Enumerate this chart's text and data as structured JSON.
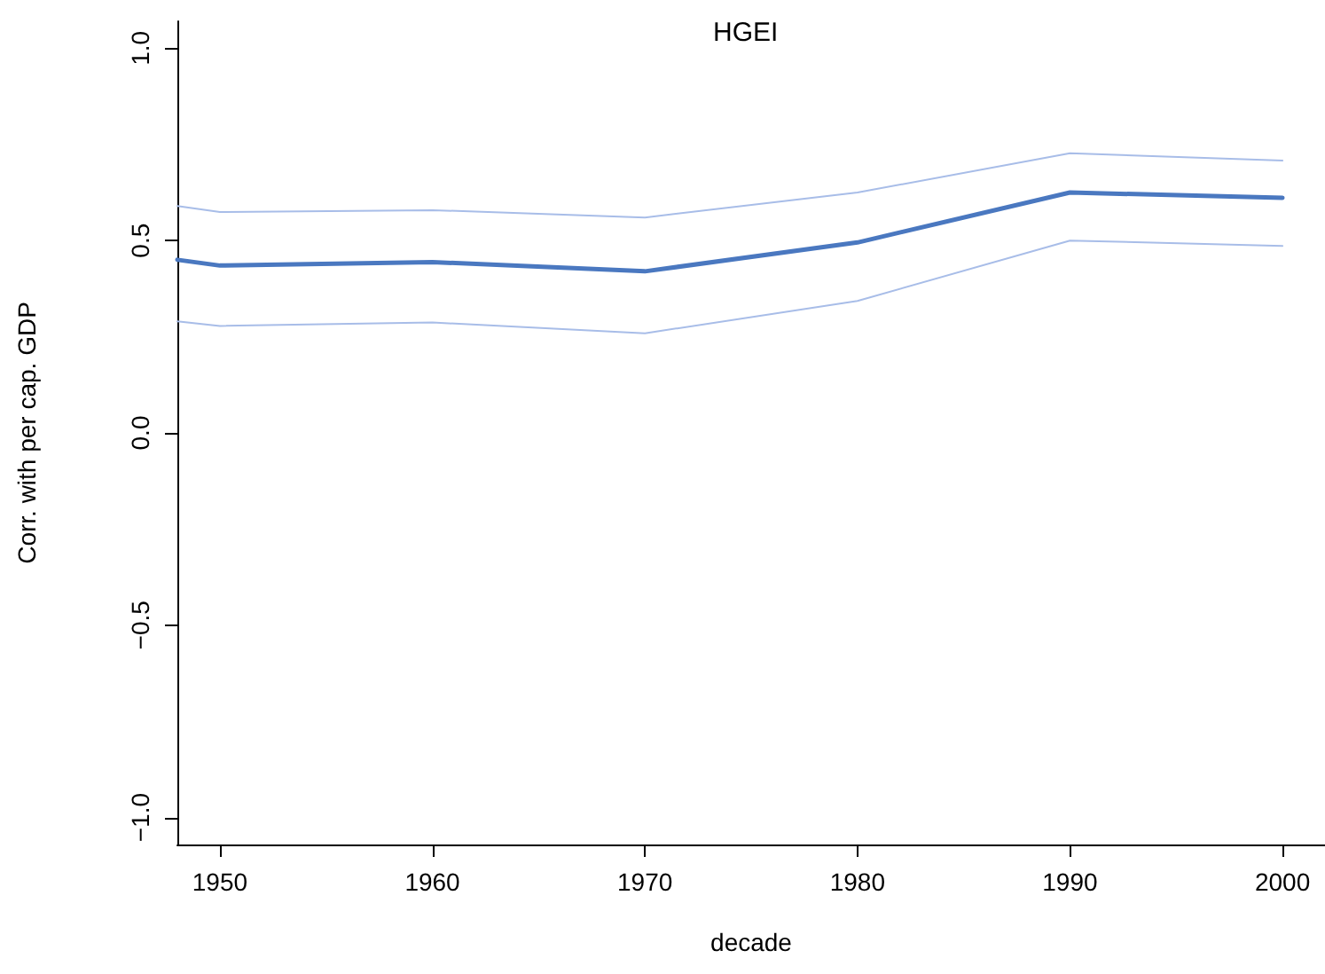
{
  "chart_data": {
    "type": "line",
    "title": "HGEI",
    "xlabel": "decade",
    "ylabel": "Corr. with per cap. GDP",
    "x": [
      1948,
      1950,
      1960,
      1970,
      1980,
      1990,
      2000
    ],
    "series": [
      {
        "color": "#4a78c0",
        "values": [
          0.45,
          0.435,
          0.444,
          0.42,
          0.495,
          0.625,
          0.611
        ]
      },
      {
        "color": "#a8bde8",
        "values": [
          0.59,
          0.574,
          0.579,
          0.56,
          0.625,
          0.727,
          0.708
        ]
      },
      {
        "color": "#a8bde8",
        "values": [
          0.29,
          0.278,
          0.287,
          0.259,
          0.343,
          0.5,
          0.486
        ]
      }
    ],
    "xlim": [
      1948,
      2002
    ],
    "xticks": [
      1950,
      1960,
      1970,
      1980,
      1990,
      2000
    ],
    "ylim": [
      -1.07,
      1.07
    ],
    "yticks": [
      {
        "value": -1,
        "label": "−1.0"
      },
      {
        "value": -0.5,
        "label": "−0.5"
      },
      {
        "value": 0,
        "label": "0.0"
      },
      {
        "value": 0.5,
        "label": "0.5"
      },
      {
        "value": 1,
        "label": "1.0"
      }
    ],
    "marker": "none",
    "line_style": "solid"
  }
}
